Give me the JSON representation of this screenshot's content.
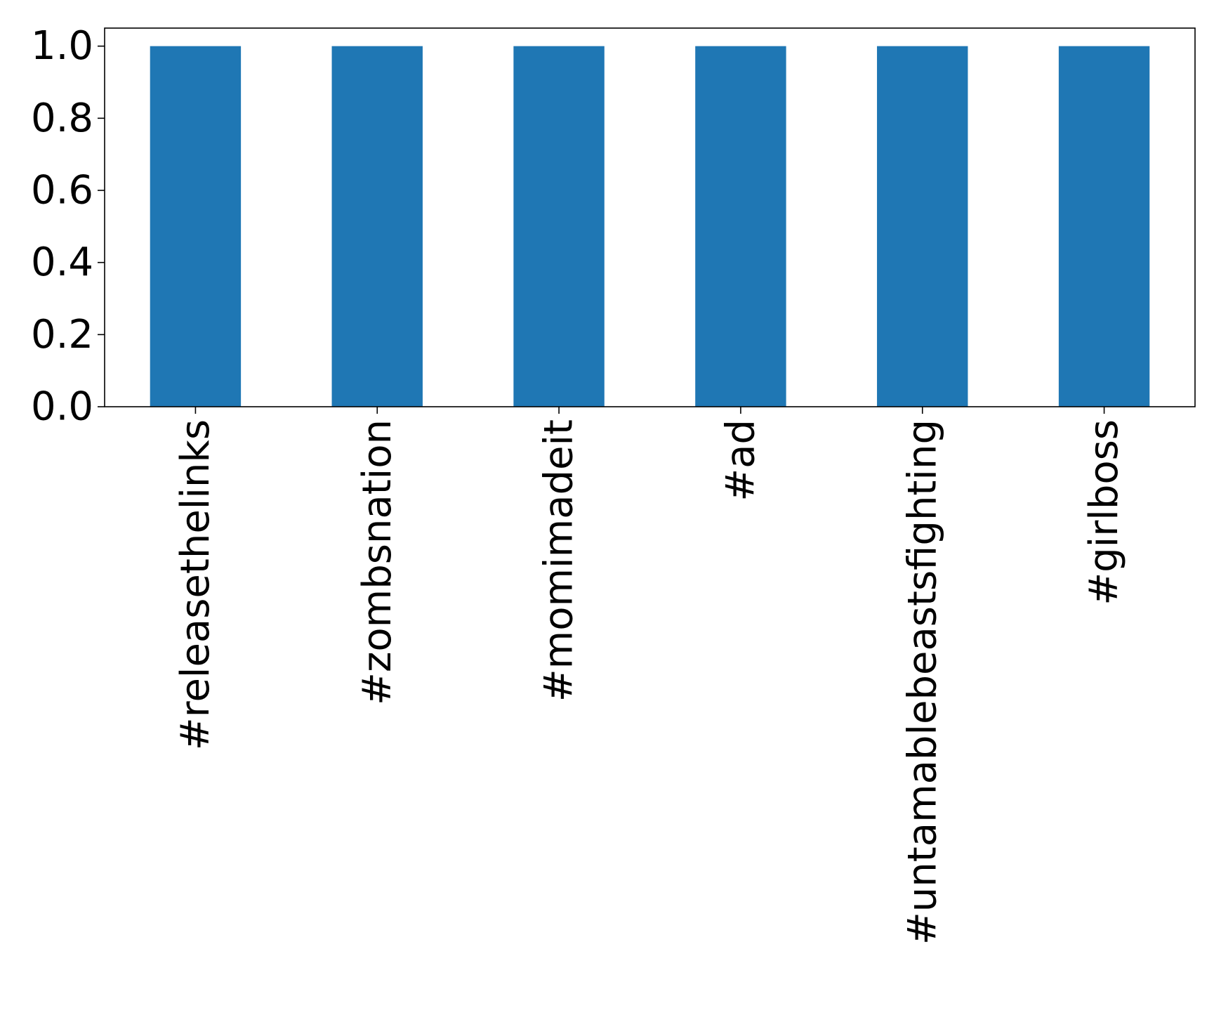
{
  "chart_data": {
    "type": "bar",
    "title": "",
    "xlabel": "",
    "ylabel": "",
    "categories": [
      "#releasethelinks",
      "#zombsnation",
      "#momimadeit",
      "#ad",
      "#untamablebeastsfighting",
      "#girlboss"
    ],
    "values": [
      1.0,
      1.0,
      1.0,
      1.0,
      1.0,
      1.0
    ],
    "ylim": [
      0,
      1.05
    ],
    "yticks": [
      0.0,
      0.2,
      0.4,
      0.6,
      0.8,
      1.0
    ],
    "ytick_labels": [
      "0.0",
      "0.2",
      "0.4",
      "0.6",
      "0.8",
      "1.0"
    ],
    "bar_color": "#1f77b4",
    "grid": false,
    "legend": "none"
  }
}
